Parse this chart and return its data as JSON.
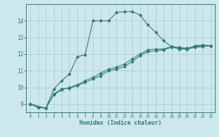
{
  "line1_x": [
    0,
    1,
    2,
    3,
    4,
    5,
    6,
    7,
    8,
    9,
    10,
    11,
    12,
    13,
    14,
    15,
    16,
    17,
    18,
    19,
    20,
    21,
    22,
    23
  ],
  "line1_y": [
    9.0,
    8.8,
    8.75,
    9.9,
    10.4,
    10.8,
    11.85,
    11.95,
    14.0,
    14.0,
    14.0,
    14.5,
    14.55,
    14.55,
    14.35,
    13.75,
    13.3,
    12.8,
    12.45,
    12.3,
    12.3,
    12.5,
    12.55,
    12.5
  ],
  "line2_x": [
    0,
    1,
    2,
    3,
    4,
    5,
    6,
    7,
    8,
    9,
    10,
    11,
    12,
    13,
    14,
    15,
    16,
    17,
    18,
    19,
    20,
    21,
    22,
    23
  ],
  "line2_y": [
    9.0,
    8.8,
    8.75,
    9.6,
    9.9,
    9.95,
    10.1,
    10.3,
    10.5,
    10.7,
    11.0,
    11.1,
    11.25,
    11.55,
    11.9,
    12.15,
    12.2,
    12.25,
    12.4,
    12.35,
    12.3,
    12.4,
    12.45,
    12.5
  ],
  "line3_x": [
    0,
    2,
    3,
    4,
    5,
    6,
    7,
    8,
    9,
    10,
    11,
    12,
    13,
    14,
    15,
    16,
    17,
    18,
    19,
    20,
    21,
    22,
    23
  ],
  "line3_y": [
    9.0,
    8.75,
    9.55,
    9.85,
    10.0,
    10.15,
    10.4,
    10.6,
    10.85,
    11.1,
    11.2,
    11.4,
    11.7,
    12.0,
    12.25,
    12.3,
    12.3,
    12.45,
    12.4,
    12.35,
    12.45,
    12.5,
    12.5
  ],
  "color": "#2E7D6E",
  "bg_color": "#cce8ec",
  "grid_color": "#aacdd4",
  "xlabel": "Humidex (Indice chaleur)",
  "xlim": [
    -0.5,
    23.5
  ],
  "ylim": [
    8.5,
    15.0
  ],
  "yticks": [
    9,
    10,
    11,
    12,
    13,
    14
  ],
  "xticks": [
    0,
    1,
    2,
    3,
    4,
    5,
    6,
    7,
    8,
    9,
    10,
    11,
    12,
    13,
    14,
    15,
    16,
    17,
    18,
    19,
    20,
    21,
    22,
    23
  ]
}
